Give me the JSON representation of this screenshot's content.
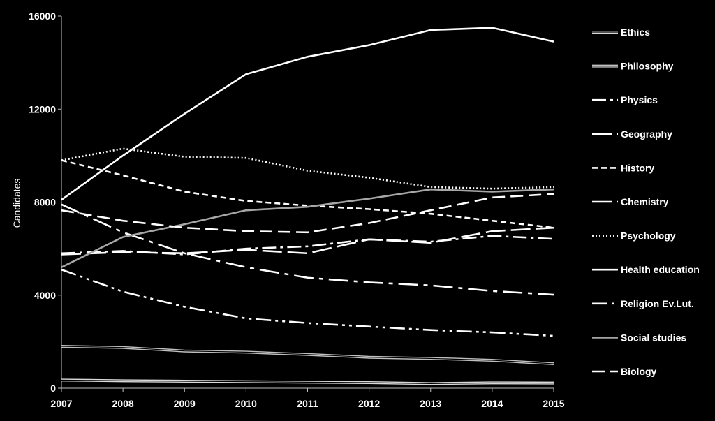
{
  "chart_data": {
    "type": "line",
    "ylabel": "Candidates",
    "xlabel": "",
    "ylim": [
      0,
      16000
    ],
    "yticks": [
      0,
      4000,
      8000,
      12000,
      16000
    ],
    "x": [
      "2007",
      "2008",
      "2009",
      "2010",
      "2011",
      "2012",
      "2013",
      "2014",
      "2015"
    ],
    "grid": false,
    "legend_position": "right",
    "series": [
      {
        "name": "Ethics",
        "values": [
          350,
          320,
          300,
          280,
          260,
          240,
          200,
          230,
          220
        ],
        "color": "#d9d9d9",
        "dash": "",
        "double": true
      },
      {
        "name": "Philosophy",
        "values": [
          1800,
          1750,
          1600,
          1550,
          1450,
          1330,
          1280,
          1200,
          1050
        ],
        "color": "#bfbfbf",
        "dash": "",
        "double": true
      },
      {
        "name": "Physics",
        "values": [
          5800,
          5900,
          5750,
          6000,
          6100,
          6400,
          6300,
          6550,
          6420
        ],
        "color": "#ffffff",
        "dash": "20,6,4,6",
        "double": false
      },
      {
        "name": "Geography",
        "values": [
          7900,
          6700,
          5800,
          5200,
          4750,
          4550,
          4420,
          4180,
          4020
        ],
        "color": "#ffffff",
        "dash": "28,8,6,8",
        "double": false
      },
      {
        "name": "History",
        "values": [
          9800,
          9150,
          8450,
          8050,
          7850,
          7700,
          7500,
          7200,
          6900
        ],
        "color": "#ffffff",
        "dash": "8,5",
        "double": false
      },
      {
        "name": "Chemistry",
        "values": [
          5750,
          5850,
          5800,
          5950,
          5800,
          6400,
          6250,
          6750,
          6900
        ],
        "color": "#ffffff",
        "dash": "28,8",
        "double": false
      },
      {
        "name": "Psychology",
        "values": [
          9800,
          10300,
          9950,
          9900,
          9350,
          9050,
          8650,
          8580,
          8650
        ],
        "color": "#ffffff",
        "dash": "2,3",
        "double": false
      },
      {
        "name": "Health education",
        "values": [
          8100,
          10000,
          11800,
          13500,
          14250,
          14750,
          15400,
          15500,
          14900
        ],
        "color": "#ffffff",
        "dash": "",
        "double": false
      },
      {
        "name": "Religion Ev.Lut.",
        "values": [
          5100,
          4150,
          3500,
          3000,
          2800,
          2650,
          2500,
          2400,
          2250
        ],
        "color": "#ffffff",
        "dash": "22,6,4,6,4,6",
        "double": false
      },
      {
        "name": "Social studies",
        "values": [
          5200,
          6500,
          7050,
          7650,
          7800,
          8150,
          8550,
          8450,
          8550
        ],
        "color": "#a6a6a6",
        "dash": "",
        "double": false
      },
      {
        "name": "Biology",
        "values": [
          7650,
          7200,
          6900,
          6750,
          6700,
          7100,
          7650,
          8200,
          8350
        ],
        "color": "#ffffff",
        "dash": "18,8",
        "double": false
      }
    ]
  }
}
